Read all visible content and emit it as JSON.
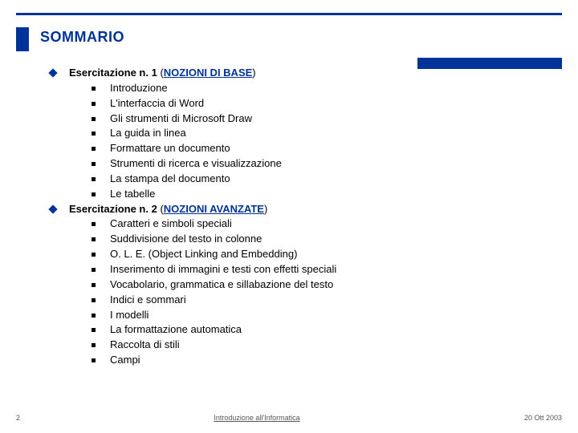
{
  "title": "SOMMARIO",
  "sections": [
    {
      "prefix": "Esercitazione n. 1 ",
      "paren_open": "(",
      "subtitle": "NOZIONI DI BASE",
      "paren_close": ")",
      "items": [
        "Introduzione",
        "L'interfaccia di Word",
        "Gli strumenti di Microsoft Draw",
        "La guida in linea",
        "Formattare un documento",
        "Strumenti di ricerca e visualizzazione",
        "La stampa del documento",
        "Le tabelle"
      ]
    },
    {
      "prefix": "Esercitazione n. 2 ",
      "paren_open": "(",
      "subtitle": "NOZIONI AVANZATE",
      "paren_close": ")",
      "items": [
        "Caratteri e simboli speciali",
        "Suddivisione del testo in colonne",
        "O. L. E. (Object Linking and Embedding)",
        "Inserimento di immagini e testi con effetti speciali",
        "Vocabolario, grammatica e sillabazione del testo",
        "Indici e sommari",
        "I modelli",
        "La formattazione automatica",
        "Raccolta di stili",
        "Campi"
      ]
    }
  ],
  "footer": {
    "page": "2",
    "center": "Introduzione all'Informatica",
    "date": "20 Ott 2003"
  },
  "colors": {
    "brand": "#003399",
    "text": "#000000",
    "footer": "#555555",
    "bg": "#ffffff"
  }
}
